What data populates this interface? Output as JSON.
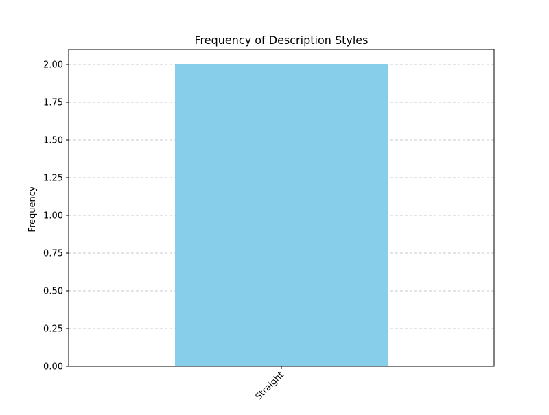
{
  "chart_data": {
    "type": "bar",
    "title": "Frequency of Description Styles",
    "xlabel": "",
    "ylabel": "Frequency",
    "categories": [
      "Straight"
    ],
    "values": [
      2
    ],
    "ylim": [
      0,
      2.1
    ],
    "yticks": [
      0.0,
      0.25,
      0.5,
      0.75,
      1.0,
      1.25,
      1.5,
      1.75,
      2.0
    ],
    "grid": "y-dashed",
    "legend": "none",
    "bar_color": "#87CEEB",
    "grid_color": "#c8c8c8"
  }
}
